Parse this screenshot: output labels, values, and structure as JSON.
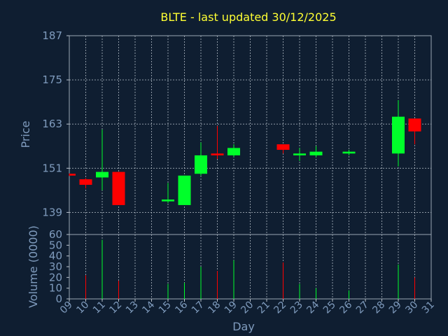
{
  "colors": {
    "background": "#0f1e31",
    "title": "#ffff33",
    "label": "#7f9bbd",
    "up": "#00ff2a",
    "down": "#ff0000",
    "grid": "#b9c2cc"
  },
  "chart_data": {
    "type": "candlestick",
    "title": "BLTE - last updated 30/12/2025",
    "xlabel": "Day",
    "ylabel": "Price",
    "volume_label": "Volume (0000)",
    "grid": true,
    "xlim": [
      9,
      31
    ],
    "x_ticks": [
      "09",
      "10",
      "11",
      "12",
      "13",
      "14",
      "15",
      "16",
      "17",
      "18",
      "19",
      "20",
      "21",
      "22",
      "23",
      "24",
      "25",
      "26",
      "27",
      "28",
      "29",
      "30",
      "31"
    ],
    "price_ylim": [
      133,
      187
    ],
    "price_ticks": [
      "187",
      "175",
      "163",
      "151",
      "139"
    ],
    "volume_ylim": [
      0,
      60
    ],
    "volume_ticks": [
      "60",
      "50",
      "40",
      "30",
      "20",
      "10",
      "0"
    ],
    "candles": [
      {
        "day": 9,
        "open": 149.5,
        "close": 149.0,
        "high": 149.6,
        "low": 148.9,
        "volume": 0
      },
      {
        "day": 10,
        "open": 148.0,
        "close": 146.5,
        "high": 148.3,
        "low": 145.5,
        "volume": 22
      },
      {
        "day": 11,
        "open": 148.5,
        "close": 150.0,
        "high": 161.5,
        "low": 145.0,
        "volume": 55
      },
      {
        "day": 12,
        "open": 150.0,
        "close": 141.0,
        "high": 150.0,
        "low": 141.0,
        "volume": 17
      },
      {
        "day": 15,
        "open": 142.0,
        "close": 142.5,
        "high": 147.0,
        "low": 141.5,
        "volume": 14
      },
      {
        "day": 16,
        "open": 141.0,
        "close": 149.0,
        "high": 149.0,
        "low": 141.0,
        "volume": 15
      },
      {
        "day": 17,
        "open": 149.5,
        "close": 154.5,
        "high": 158.0,
        "low": 149.0,
        "volume": 30
      },
      {
        "day": 18,
        "open": 155.0,
        "close": 154.5,
        "high": 162.5,
        "low": 153.5,
        "volume": 26
      },
      {
        "day": 19,
        "open": 154.5,
        "close": 156.5,
        "high": 157.5,
        "low": 154.0,
        "volume": 36
      },
      {
        "day": 22,
        "open": 157.5,
        "close": 156.0,
        "high": 157.5,
        "low": 155.0,
        "volume": 34
      },
      {
        "day": 23,
        "open": 154.5,
        "close": 155.0,
        "high": 156.5,
        "low": 153.0,
        "volume": 14
      },
      {
        "day": 24,
        "open": 154.5,
        "close": 155.5,
        "high": 157.0,
        "low": 154.0,
        "volume": 10
      },
      {
        "day": 26,
        "open": 155.0,
        "close": 155.5,
        "high": 156.0,
        "low": 154.5,
        "volume": 8
      },
      {
        "day": 29,
        "open": 155.0,
        "close": 165.0,
        "high": 169.5,
        "low": 151.5,
        "volume": 32
      },
      {
        "day": 30,
        "open": 164.5,
        "close": 161.0,
        "high": 164.5,
        "low": 157.5,
        "volume": 20
      }
    ]
  }
}
